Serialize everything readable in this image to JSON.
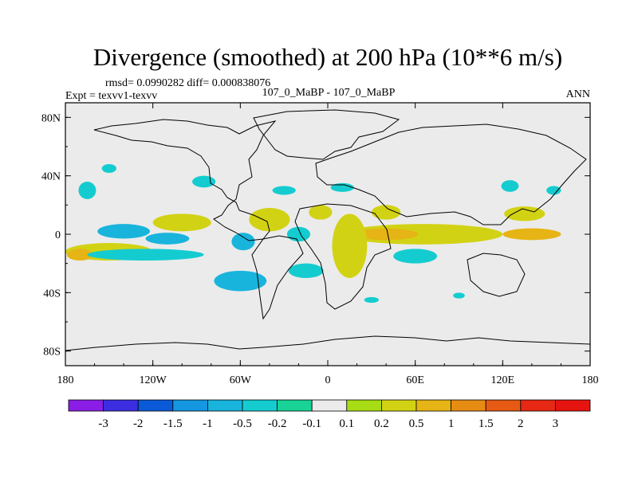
{
  "chart_data": {
    "type": "heatmap",
    "title": "Divergence (smoothed) at 200 hPa (10**6 m/s)",
    "stats_line": "rmsd= 0.0990282 diff= 0.000838076",
    "left_label": "Expt = texvv1-texvv",
    "center_label": "107_0_MaBP - 107_0_MaBP",
    "right_label": "ANN",
    "xaxis": {
      "range": [
        -180,
        180
      ],
      "ticks": [
        {
          "v": -180,
          "label": "180"
        },
        {
          "v": -120,
          "label": "120W"
        },
        {
          "v": -60,
          "label": "60W"
        },
        {
          "v": 0,
          "label": "0"
        },
        {
          "v": 60,
          "label": "60E"
        },
        {
          "v": 120,
          "label": "120E"
        },
        {
          "v": 180,
          "label": "180"
        }
      ]
    },
    "yaxis": {
      "range": [
        -90,
        90
      ],
      "ticks": [
        {
          "v": 80,
          "label": "80N"
        },
        {
          "v": 40,
          "label": "40N"
        },
        {
          "v": 0,
          "label": "0"
        },
        {
          "v": -40,
          "label": "40S"
        },
        {
          "v": -80,
          "label": "80S"
        }
      ]
    },
    "colorbar": {
      "labels": [
        "-3",
        "-2",
        "-1.5",
        "-1",
        "-0.5",
        "-0.2",
        "-0.1",
        "0.1",
        "0.2",
        "0.5",
        "1",
        "1.5",
        "2",
        "3"
      ],
      "colors": [
        "#8a1ee6",
        "#3c2ee0",
        "#0a5ad8",
        "#1496e0",
        "#19b4dc",
        "#14ccd0",
        "#19d296",
        "#ebebeb",
        "#a8dc14",
        "#d2d214",
        "#e6b414",
        "#e68c14",
        "#e65a14",
        "#e62814",
        "#e61410"
      ]
    },
    "features": [
      {
        "name": "tropical-band-indian-pacific",
        "value": 0.3,
        "lon": 65,
        "lat": 0,
        "dlon": 55,
        "dlat": 7
      },
      {
        "name": "tropical-core-indian",
        "value": 0.6,
        "lon": 40,
        "lat": 0,
        "dlon": 22,
        "dlat": 4
      },
      {
        "name": "tropical-core-pacific",
        "value": 0.6,
        "lon": 140,
        "lat": 0,
        "dlon": 20,
        "dlat": 4
      },
      {
        "name": "africa-diagonal",
        "value": 0.3,
        "lon": 15,
        "lat": -8,
        "dlon": 12,
        "dlat": 22
      },
      {
        "name": "south-pacific-band",
        "value": 0.3,
        "lon": -150,
        "lat": -12,
        "dlon": 30,
        "dlat": 6
      },
      {
        "name": "south-pacific-core",
        "value": 0.6,
        "lon": -170,
        "lat": -14,
        "dlon": 9,
        "dlat": 4
      },
      {
        "name": "north-pacific-blob",
        "value": 0.3,
        "lon": -100,
        "lat": 8,
        "dlon": 20,
        "dlat": 6
      },
      {
        "name": "central-america-blob",
        "value": 0.3,
        "lon": -40,
        "lat": 10,
        "dlon": 14,
        "dlat": 8
      },
      {
        "name": "north-africa-blob",
        "value": 0.3,
        "lon": -5,
        "lat": 15,
        "dlon": 8,
        "dlat": 5
      },
      {
        "name": "arabia-blob",
        "value": 0.3,
        "lon": 40,
        "lat": 15,
        "dlon": 10,
        "dlat": 5
      },
      {
        "name": "east-asia-blob",
        "value": 0.3,
        "lon": 135,
        "lat": 14,
        "dlon": 14,
        "dlat": 5
      },
      {
        "name": "north-pacific-dipole-neg",
        "value": -0.6,
        "lon": -140,
        "lat": 2,
        "dlon": 18,
        "dlat": 5
      },
      {
        "name": "east-pacific-neg",
        "value": -0.6,
        "lon": -110,
        "lat": -3,
        "dlon": 15,
        "dlat": 4
      },
      {
        "name": "south-band-neg",
        "value": -0.4,
        "lon": -125,
        "lat": -14,
        "dlon": 40,
        "dlat": 4
      },
      {
        "name": "amazon-neg",
        "value": -0.6,
        "lon": -58,
        "lat": -5,
        "dlon": 8,
        "dlat": 6
      },
      {
        "name": "atlantic-neg",
        "value": -0.4,
        "lon": -20,
        "lat": 0,
        "dlon": 8,
        "dlat": 5
      },
      {
        "name": "south-america-neg",
        "value": -0.6,
        "lon": -60,
        "lat": -32,
        "dlon": 18,
        "dlat": 7
      },
      {
        "name": "south-atlantic-neg",
        "value": -0.3,
        "lon": -15,
        "lat": -25,
        "dlon": 12,
        "dlat": 5
      },
      {
        "name": "indian-ocean-neg",
        "value": -0.3,
        "lon": 60,
        "lat": -15,
        "dlon": 15,
        "dlat": 5
      },
      {
        "name": "nw-pacific-neg",
        "value": -0.3,
        "lon": -165,
        "lat": 30,
        "dlon": 6,
        "dlat": 6
      },
      {
        "name": "ne-pacific-neg",
        "value": -0.3,
        "lon": -150,
        "lat": 45,
        "dlon": 5,
        "dlat": 3
      },
      {
        "name": "north-america-neg",
        "value": -0.3,
        "lon": -85,
        "lat": 36,
        "dlon": 8,
        "dlat": 4
      },
      {
        "name": "north-atlantic-neg",
        "value": -0.3,
        "lon": -30,
        "lat": 30,
        "dlon": 8,
        "dlat": 3
      },
      {
        "name": "mediterranean-neg",
        "value": -0.3,
        "lon": 10,
        "lat": 32,
        "dlon": 8,
        "dlat": 3
      },
      {
        "name": "west-pacific-neg",
        "value": -0.3,
        "lon": 125,
        "lat": 33,
        "dlon": 6,
        "dlat": 4
      },
      {
        "name": "far-east-pacific-neg",
        "value": -0.3,
        "lon": 155,
        "lat": 30,
        "dlon": 5,
        "dlat": 3
      },
      {
        "name": "south-indian-neg",
        "value": -0.3,
        "lon": 30,
        "lat": -45,
        "dlon": 5,
        "dlat": 2
      },
      {
        "name": "far-south-indian-neg",
        "value": -0.3,
        "lon": 90,
        "lat": -42,
        "dlon": 4,
        "dlat": 2
      }
    ]
  }
}
